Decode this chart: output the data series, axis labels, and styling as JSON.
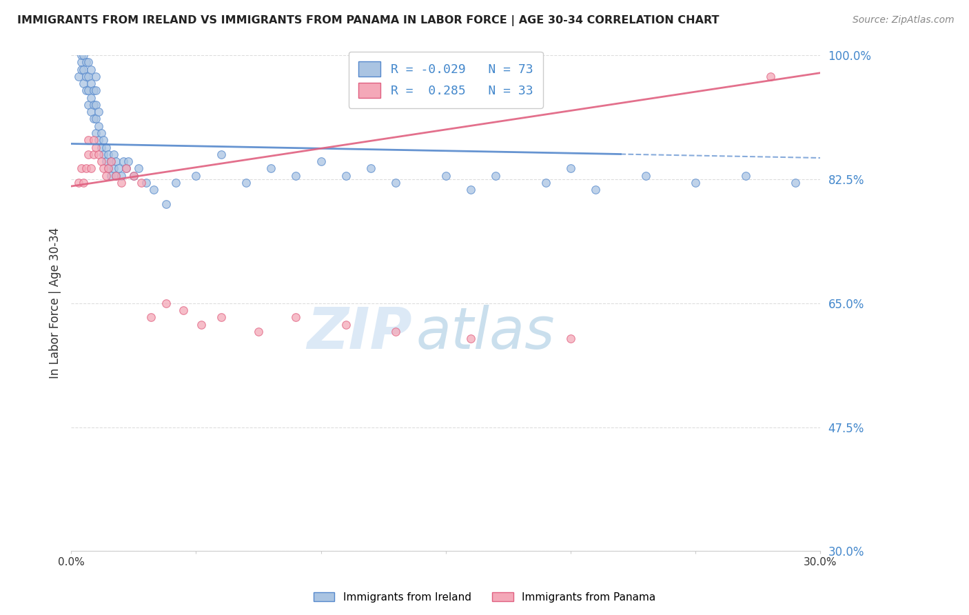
{
  "title": "IMMIGRANTS FROM IRELAND VS IMMIGRANTS FROM PANAMA IN LABOR FORCE | AGE 30-34 CORRELATION CHART",
  "source": "Source: ZipAtlas.com",
  "ylabel": "In Labor Force | Age 30-34",
  "xmin": 0.0,
  "xmax": 0.3,
  "ymin": 0.3,
  "ymax": 1.0,
  "yticks": [
    0.3,
    0.475,
    0.65,
    0.825,
    1.0
  ],
  "ytick_labels": [
    "30.0%",
    "47.5%",
    "65.0%",
    "82.5%",
    "100.0%"
  ],
  "xticks": [
    0.0,
    0.05,
    0.1,
    0.15,
    0.2,
    0.25,
    0.3
  ],
  "xtick_labels": [
    "0.0%",
    "",
    "",
    "",
    "",
    "",
    "30.0%"
  ],
  "ireland_R": -0.029,
  "ireland_N": 73,
  "panama_R": 0.285,
  "panama_N": 33,
  "ireland_color": "#aac4e2",
  "panama_color": "#f4a8b8",
  "ireland_edge_color": "#5588cc",
  "panama_edge_color": "#e06080",
  "ireland_line_color": "#5588cc",
  "panama_line_color": "#e06080",
  "background_color": "#ffffff",
  "grid_color": "#dddddd",
  "watermark_zip": "ZIP",
  "watermark_atlas": "atlas",
  "ireland_x": [
    0.003,
    0.004,
    0.004,
    0.004,
    0.005,
    0.005,
    0.005,
    0.006,
    0.006,
    0.006,
    0.007,
    0.007,
    0.007,
    0.007,
    0.008,
    0.008,
    0.008,
    0.008,
    0.009,
    0.009,
    0.009,
    0.01,
    0.01,
    0.01,
    0.01,
    0.01,
    0.011,
    0.011,
    0.011,
    0.012,
    0.012,
    0.013,
    0.013,
    0.014,
    0.014,
    0.015,
    0.015,
    0.016,
    0.016,
    0.017,
    0.017,
    0.018,
    0.018,
    0.019,
    0.02,
    0.021,
    0.022,
    0.023,
    0.025,
    0.027,
    0.03,
    0.033,
    0.038,
    0.042,
    0.05,
    0.06,
    0.07,
    0.08,
    0.09,
    0.1,
    0.11,
    0.12,
    0.13,
    0.15,
    0.16,
    0.17,
    0.19,
    0.2,
    0.21,
    0.23,
    0.25,
    0.27,
    0.29
  ],
  "ireland_y": [
    0.97,
    0.99,
    1.0,
    0.98,
    0.96,
    0.98,
    1.0,
    0.95,
    0.97,
    0.99,
    0.93,
    0.95,
    0.97,
    0.99,
    0.92,
    0.94,
    0.96,
    0.98,
    0.91,
    0.93,
    0.95,
    0.89,
    0.91,
    0.93,
    0.95,
    0.97,
    0.88,
    0.9,
    0.92,
    0.87,
    0.89,
    0.86,
    0.88,
    0.85,
    0.87,
    0.84,
    0.86,
    0.83,
    0.85,
    0.84,
    0.86,
    0.83,
    0.85,
    0.84,
    0.83,
    0.85,
    0.84,
    0.85,
    0.83,
    0.84,
    0.82,
    0.81,
    0.79,
    0.82,
    0.83,
    0.86,
    0.82,
    0.84,
    0.83,
    0.85,
    0.83,
    0.84,
    0.82,
    0.83,
    0.81,
    0.83,
    0.82,
    0.84,
    0.81,
    0.83,
    0.82,
    0.83,
    0.82
  ],
  "panama_x": [
    0.003,
    0.004,
    0.005,
    0.006,
    0.007,
    0.007,
    0.008,
    0.009,
    0.009,
    0.01,
    0.011,
    0.012,
    0.013,
    0.014,
    0.015,
    0.016,
    0.018,
    0.02,
    0.022,
    0.025,
    0.028,
    0.032,
    0.038,
    0.045,
    0.052,
    0.06,
    0.075,
    0.09,
    0.11,
    0.13,
    0.16,
    0.2,
    0.28
  ],
  "panama_y": [
    0.82,
    0.84,
    0.82,
    0.84,
    0.86,
    0.88,
    0.84,
    0.86,
    0.88,
    0.87,
    0.86,
    0.85,
    0.84,
    0.83,
    0.84,
    0.85,
    0.83,
    0.82,
    0.84,
    0.83,
    0.82,
    0.63,
    0.65,
    0.64,
    0.62,
    0.63,
    0.61,
    0.63,
    0.62,
    0.61,
    0.6,
    0.6,
    0.97
  ],
  "ireland_trend_x0": 0.0,
  "ireland_trend_y0": 0.875,
  "ireland_trend_x1": 0.3,
  "ireland_trend_y1": 0.855,
  "panama_trend_x0": 0.0,
  "panama_trend_y0": 0.815,
  "panama_trend_x1": 0.3,
  "panama_trend_y1": 0.975
}
